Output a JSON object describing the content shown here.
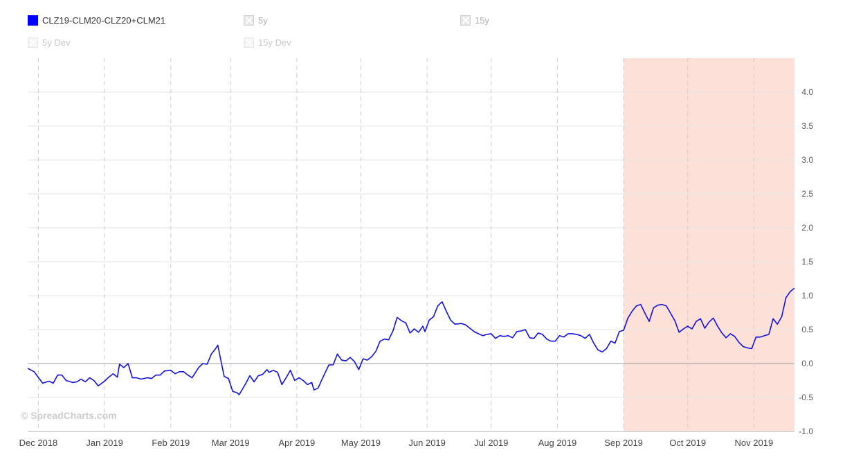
{
  "legend": {
    "items": [
      {
        "label": "CLZ19-CLM20-CLZ20+CLM21",
        "active": true
      },
      {
        "label": "5y",
        "active": false
      },
      {
        "label": "15y",
        "active": false
      },
      {
        "label": "5y Dev",
        "active": false
      },
      {
        "label": "15y Dev",
        "active": false
      }
    ]
  },
  "watermark": "© SpreadCharts.com",
  "colors": {
    "series": "#1010e0",
    "highlight": "#fde0d8",
    "grid": "#e3e3e3",
    "zero_line": "#999999"
  },
  "chart_data": {
    "type": "line",
    "x_start": "2018-11-26",
    "x_end": "2019-11-20",
    "x_tick_labels": [
      {
        "date": "2018-12-01",
        "label": "Dec 2018"
      },
      {
        "date": "2019-01-01",
        "label": "Jan 2019"
      },
      {
        "date": "2019-02-01",
        "label": "Feb 2019"
      },
      {
        "date": "2019-03-01",
        "label": "Mar 2019"
      },
      {
        "date": "2019-04-01",
        "label": "Apr 2019"
      },
      {
        "date": "2019-05-01",
        "label": "May 2019"
      },
      {
        "date": "2019-06-01",
        "label": "Jun 2019"
      },
      {
        "date": "2019-07-01",
        "label": "Jul 2019"
      },
      {
        "date": "2019-08-01",
        "label": "Aug 2019"
      },
      {
        "date": "2019-09-01",
        "label": "Sep 2019"
      },
      {
        "date": "2019-10-01",
        "label": "Oct 2019"
      },
      {
        "date": "2019-11-01",
        "label": "Nov 2019"
      }
    ],
    "ylim": [
      -1.0,
      4.5
    ],
    "y_ticks": [
      -1.0,
      -0.5,
      0.0,
      0.5,
      1.0,
      1.5,
      2.0,
      2.5,
      3.0,
      3.5,
      4.0
    ],
    "y_axis_side": "right",
    "grid": true,
    "highlight_region": {
      "from": "2019-09-01",
      "to": "2019-11-20"
    },
    "series": [
      {
        "name": "CLZ19-CLM20-CLZ20+CLM21",
        "points": [
          [
            "2018-11-26",
            -0.07
          ],
          [
            "2018-11-29",
            -0.12
          ],
          [
            "2018-12-03",
            -0.29
          ],
          [
            "2018-12-06",
            -0.26
          ],
          [
            "2018-12-08",
            -0.29
          ],
          [
            "2018-12-10",
            -0.17
          ],
          [
            "2018-12-12",
            -0.17
          ],
          [
            "2018-12-14",
            -0.25
          ],
          [
            "2018-12-17",
            -0.28
          ],
          [
            "2018-12-19",
            -0.27
          ],
          [
            "2018-12-21",
            -0.23
          ],
          [
            "2018-12-23",
            -0.27
          ],
          [
            "2018-12-25",
            -0.21
          ],
          [
            "2018-12-27",
            -0.25
          ],
          [
            "2018-12-29",
            -0.33
          ],
          [
            "2019-01-01",
            -0.26
          ],
          [
            "2019-01-03",
            -0.2
          ],
          [
            "2019-01-05",
            -0.15
          ],
          [
            "2019-01-07",
            -0.2
          ],
          [
            "2019-01-08",
            -0.01
          ],
          [
            "2019-01-10",
            -0.06
          ],
          [
            "2019-01-12",
            0.0
          ],
          [
            "2019-01-14",
            -0.21
          ],
          [
            "2019-01-16",
            -0.21
          ],
          [
            "2019-01-18",
            -0.23
          ],
          [
            "2019-01-21",
            -0.21
          ],
          [
            "2019-01-23",
            -0.22
          ],
          [
            "2019-01-25",
            -0.17
          ],
          [
            "2019-01-27",
            -0.17
          ],
          [
            "2019-01-29",
            -0.11
          ],
          [
            "2019-02-01",
            -0.1
          ],
          [
            "2019-02-03",
            -0.15
          ],
          [
            "2019-02-05",
            -0.12
          ],
          [
            "2019-02-07",
            -0.12
          ],
          [
            "2019-02-09",
            -0.17
          ],
          [
            "2019-02-11",
            -0.21
          ],
          [
            "2019-02-14",
            -0.06
          ],
          [
            "2019-02-16",
            0.0
          ],
          [
            "2019-02-18",
            -0.01
          ],
          [
            "2019-02-20",
            0.14
          ],
          [
            "2019-02-22",
            0.22
          ],
          [
            "2019-02-23",
            0.27
          ],
          [
            "2019-02-26",
            -0.19
          ],
          [
            "2019-02-28",
            -0.22
          ],
          [
            "2019-03-02",
            -0.41
          ],
          [
            "2019-03-04",
            -0.43
          ],
          [
            "2019-03-05",
            -0.46
          ],
          [
            "2019-03-08",
            -0.3
          ],
          [
            "2019-03-10",
            -0.18
          ],
          [
            "2019-03-12",
            -0.27
          ],
          [
            "2019-03-14",
            -0.18
          ],
          [
            "2019-03-16",
            -0.16
          ],
          [
            "2019-03-18",
            -0.09
          ],
          [
            "2019-03-19",
            -0.13
          ],
          [
            "2019-03-21",
            -0.1
          ],
          [
            "2019-03-23",
            -0.13
          ],
          [
            "2019-03-25",
            -0.31
          ],
          [
            "2019-03-27",
            -0.21
          ],
          [
            "2019-03-29",
            -0.1
          ],
          [
            "2019-03-31",
            -0.25
          ],
          [
            "2019-04-02",
            -0.21
          ],
          [
            "2019-04-04",
            -0.25
          ],
          [
            "2019-04-06",
            -0.31
          ],
          [
            "2019-04-08",
            -0.28
          ],
          [
            "2019-04-09",
            -0.39
          ],
          [
            "2019-04-11",
            -0.36
          ],
          [
            "2019-04-13",
            -0.22
          ],
          [
            "2019-04-16",
            -0.02
          ],
          [
            "2019-04-18",
            -0.02
          ],
          [
            "2019-04-20",
            0.14
          ],
          [
            "2019-04-22",
            0.05
          ],
          [
            "2019-04-24",
            0.04
          ],
          [
            "2019-04-26",
            0.09
          ],
          [
            "2019-04-28",
            0.03
          ],
          [
            "2019-04-30",
            -0.09
          ],
          [
            "2019-05-02",
            0.07
          ],
          [
            "2019-05-04",
            0.05
          ],
          [
            "2019-05-06",
            0.1
          ],
          [
            "2019-05-08",
            0.18
          ],
          [
            "2019-05-10",
            0.33
          ],
          [
            "2019-05-12",
            0.36
          ],
          [
            "2019-05-14",
            0.35
          ],
          [
            "2019-05-16",
            0.48
          ],
          [
            "2019-05-18",
            0.68
          ],
          [
            "2019-05-20",
            0.63
          ],
          [
            "2019-05-22",
            0.6
          ],
          [
            "2019-05-24",
            0.45
          ],
          [
            "2019-05-26",
            0.51
          ],
          [
            "2019-05-28",
            0.46
          ],
          [
            "2019-05-30",
            0.55
          ],
          [
            "2019-05-31",
            0.47
          ],
          [
            "2019-06-02",
            0.64
          ],
          [
            "2019-06-04",
            0.69
          ],
          [
            "2019-06-06",
            0.85
          ],
          [
            "2019-06-08",
            0.91
          ],
          [
            "2019-06-10",
            0.77
          ],
          [
            "2019-06-12",
            0.64
          ],
          [
            "2019-06-14",
            0.58
          ],
          [
            "2019-06-17",
            0.59
          ],
          [
            "2019-06-19",
            0.57
          ],
          [
            "2019-06-21",
            0.52
          ],
          [
            "2019-06-23",
            0.47
          ],
          [
            "2019-06-25",
            0.44
          ],
          [
            "2019-06-27",
            0.41
          ],
          [
            "2019-06-29",
            0.43
          ],
          [
            "2019-07-01",
            0.44
          ],
          [
            "2019-07-03",
            0.37
          ],
          [
            "2019-07-05",
            0.41
          ],
          [
            "2019-07-07",
            0.4
          ],
          [
            "2019-07-09",
            0.41
          ],
          [
            "2019-07-11",
            0.38
          ],
          [
            "2019-07-13",
            0.47
          ],
          [
            "2019-07-15",
            0.48
          ],
          [
            "2019-07-17",
            0.5
          ],
          [
            "2019-07-19",
            0.38
          ],
          [
            "2019-07-21",
            0.37
          ],
          [
            "2019-07-23",
            0.45
          ],
          [
            "2019-07-25",
            0.43
          ],
          [
            "2019-07-27",
            0.36
          ],
          [
            "2019-07-29",
            0.33
          ],
          [
            "2019-07-31",
            0.33
          ],
          [
            "2019-08-02",
            0.41
          ],
          [
            "2019-08-04",
            0.39
          ],
          [
            "2019-08-06",
            0.44
          ],
          [
            "2019-08-08",
            0.44
          ],
          [
            "2019-08-10",
            0.43
          ],
          [
            "2019-08-12",
            0.41
          ],
          [
            "2019-08-14",
            0.37
          ],
          [
            "2019-08-16",
            0.43
          ],
          [
            "2019-08-18",
            0.3
          ],
          [
            "2019-08-20",
            0.2
          ],
          [
            "2019-08-22",
            0.17
          ],
          [
            "2019-08-24",
            0.22
          ],
          [
            "2019-08-26",
            0.33
          ],
          [
            "2019-08-28",
            0.3
          ],
          [
            "2019-08-30",
            0.47
          ],
          [
            "2019-09-01",
            0.49
          ],
          [
            "2019-09-03",
            0.67
          ],
          [
            "2019-09-05",
            0.77
          ],
          [
            "2019-09-07",
            0.85
          ],
          [
            "2019-09-09",
            0.87
          ],
          [
            "2019-09-11",
            0.74
          ],
          [
            "2019-09-13",
            0.62
          ],
          [
            "2019-09-15",
            0.82
          ],
          [
            "2019-09-17",
            0.86
          ],
          [
            "2019-09-19",
            0.87
          ],
          [
            "2019-09-21",
            0.85
          ],
          [
            "2019-09-23",
            0.74
          ],
          [
            "2019-09-25",
            0.63
          ],
          [
            "2019-09-27",
            0.46
          ],
          [
            "2019-09-29",
            0.51
          ],
          [
            "2019-10-01",
            0.55
          ],
          [
            "2019-10-03",
            0.51
          ],
          [
            "2019-10-05",
            0.62
          ],
          [
            "2019-10-07",
            0.66
          ],
          [
            "2019-10-09",
            0.52
          ],
          [
            "2019-10-11",
            0.61
          ],
          [
            "2019-10-13",
            0.67
          ],
          [
            "2019-10-15",
            0.55
          ],
          [
            "2019-10-17",
            0.45
          ],
          [
            "2019-10-19",
            0.38
          ],
          [
            "2019-10-21",
            0.44
          ],
          [
            "2019-10-23",
            0.4
          ],
          [
            "2019-10-25",
            0.31
          ],
          [
            "2019-10-27",
            0.25
          ],
          [
            "2019-10-29",
            0.23
          ],
          [
            "2019-10-31",
            0.22
          ],
          [
            "2019-11-02",
            0.39
          ],
          [
            "2019-11-04",
            0.39
          ],
          [
            "2019-11-06",
            0.41
          ],
          [
            "2019-11-08",
            0.43
          ],
          [
            "2019-11-10",
            0.66
          ],
          [
            "2019-11-12",
            0.58
          ],
          [
            "2019-11-14",
            0.69
          ],
          [
            "2019-11-16",
            0.97
          ],
          [
            "2019-11-18",
            1.06
          ],
          [
            "2019-11-20",
            1.11
          ]
        ]
      }
    ]
  }
}
